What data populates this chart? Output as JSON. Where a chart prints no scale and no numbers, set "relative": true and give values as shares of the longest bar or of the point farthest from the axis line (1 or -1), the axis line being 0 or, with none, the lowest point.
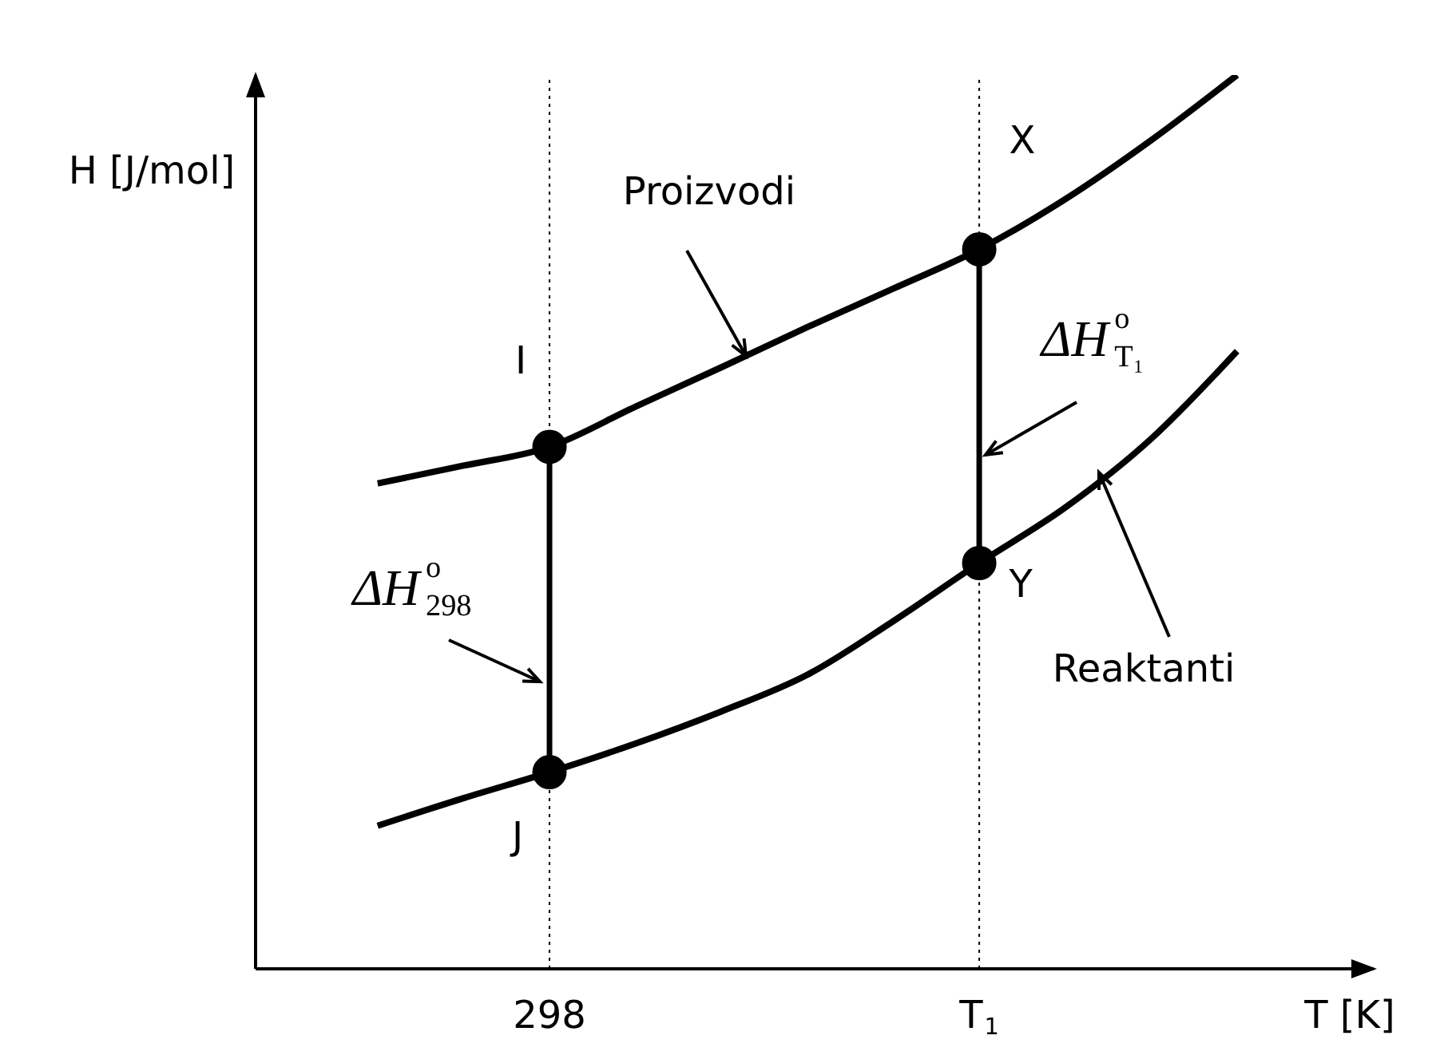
{
  "chart_data": {
    "type": "line",
    "relative": true,
    "xlabel": "T [K]",
    "ylabel": "H [J/mol]",
    "categories": [
      null,
      null,
      "298",
      null,
      null,
      null,
      null,
      "T$_{1}$",
      null,
      null,
      null
    ],
    "series": [
      {
        "name": "Proizvodi",
        "color": "#000000",
        "marker": "none",
        "values": [
          0.543,
          0.563,
          0.584,
          0.629,
          0.673,
          0.718,
          0.761,
          0.805,
          0.861,
          0.927,
          1.0
        ]
      },
      {
        "name": "Reaktanti",
        "color": "#000000",
        "marker": "none",
        "values": [
          0.16,
          0.191,
          0.22,
          0.252,
          0.288,
          0.329,
          0.389,
          0.454,
          0.516,
          0.593,
          0.691
        ]
      },
      {
        "color": "#000000",
        "marker": "circle",
        "x": [
          "298",
          "298"
        ],
        "values": [
          0.22,
          0.584
        ]
      },
      {
        "color": "#000000",
        "marker": "circle",
        "x": [
          "T$_{1}$",
          "T$_{1}$"
        ],
        "values": [
          0.454,
          0.805
        ]
      }
    ],
    "ref_lines": [
      {
        "axis": "x",
        "value": "298",
        "line_style": "dotted",
        "color": "#000000"
      },
      {
        "axis": "x",
        "value": "T$_{1}$",
        "line_style": "dotted",
        "color": "#000000"
      }
    ],
    "annotations": [
      {
        "text": "I",
        "x": "298",
        "y": 0.584
      },
      {
        "text": "J",
        "x": "298",
        "y": 0.22
      },
      {
        "text": "X",
        "x": "T$_{1}$",
        "y": 0.805
      },
      {
        "text": "Y",
        "x": "T$_{1}$",
        "y": 0.454
      },
      "ΔH$^{o}$$_{298}$",
      "ΔH$^{o}$$_{T₁}$"
    ]
  }
}
